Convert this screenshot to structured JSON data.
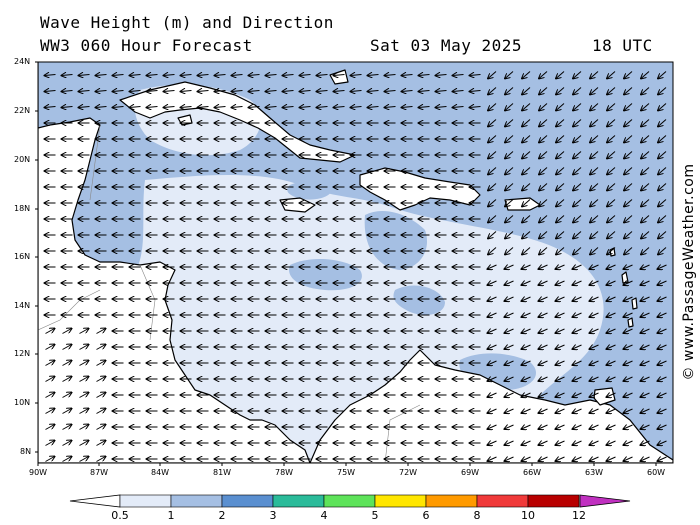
{
  "header": {
    "title": "Wave Height (m) and Direction",
    "model": "WW3 060 Hour Forecast",
    "date": "Sat 03 May 2025",
    "time": "18 UTC"
  },
  "credit": "© www.PassageWeather.com",
  "axes": {
    "lat_labels": [
      "24N",
      "22N",
      "20N",
      "18N",
      "16N",
      "14N",
      "12N",
      "10N",
      "8N"
    ],
    "lon_labels": [
      "90W",
      "87W",
      "84W",
      "81W",
      "78W",
      "75W",
      "72W",
      "69W",
      "66W",
      "63W",
      "60W"
    ]
  },
  "colorbar": {
    "ticks": [
      "0.5",
      "1",
      "2",
      "3",
      "4",
      "5",
      "6",
      "8",
      "10",
      "12"
    ],
    "colors": [
      "#e3ebf8",
      "#a5bfe3",
      "#5a8fd0",
      "#2bbb9a",
      "#5ee35a",
      "#ffe600",
      "#ff9a00",
      "#f03a3a",
      "#b80000",
      "#c030c0"
    ]
  },
  "legend_units": "m",
  "map_colors": {
    "sea_low": "#e3ebf8",
    "sea_mid": "#a5bfe3",
    "land": "#ffffff",
    "coast": "#000000"
  }
}
